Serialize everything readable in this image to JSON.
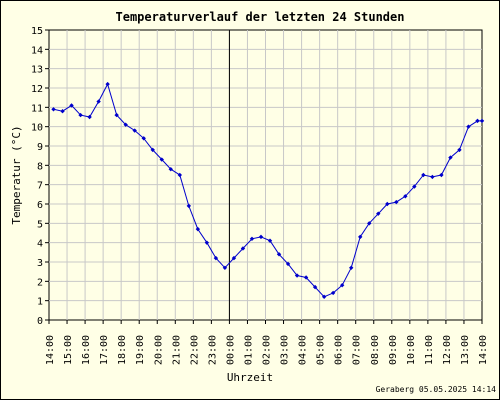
{
  "chart_data": {
    "type": "line",
    "title": "Temperaturverlauf der letzten 24 Stunden",
    "xlabel": "Uhrzeit",
    "ylabel": "Temperatur (°C)",
    "ylim": [
      0,
      15
    ],
    "yticks": [
      "0",
      "1",
      "2",
      "3",
      "4",
      "5",
      "6",
      "7",
      "8",
      "9",
      "10",
      "11",
      "12",
      "13",
      "14",
      "15"
    ],
    "xticks": [
      "14:00",
      "15:00",
      "16:00",
      "17:00",
      "18:00",
      "19:00",
      "20:00",
      "21:00",
      "22:00",
      "23:00",
      "00:00",
      "01:00",
      "02:00",
      "03:00",
      "04:00",
      "05:00",
      "06:00",
      "07:00",
      "08:00",
      "09:00",
      "10:00",
      "11:00",
      "12:00",
      "13:00",
      "14:00"
    ],
    "x_hours": [
      0.25,
      0.75,
      1.25,
      1.75,
      2.25,
      2.75,
      3.25,
      3.75,
      4.25,
      4.75,
      5.25,
      5.75,
      6.25,
      6.75,
      7.25,
      7.75,
      8.25,
      8.75,
      9.25,
      9.75,
      10.25,
      10.75,
      11.25,
      11.75,
      12.25,
      12.75,
      13.25,
      13.75,
      14.25,
      14.75,
      15.25,
      15.75,
      16.25,
      16.75,
      17.25,
      17.75,
      18.25,
      18.75,
      19.25,
      19.75,
      20.25,
      20.75,
      21.25,
      21.75,
      22.25,
      22.75,
      23.25,
      23.75,
      24.0
    ],
    "values": [
      10.9,
      10.8,
      11.1,
      10.6,
      10.5,
      11.3,
      12.2,
      10.6,
      10.1,
      9.8,
      9.4,
      8.8,
      8.3,
      7.8,
      7.5,
      5.9,
      4.7,
      4.0,
      3.2,
      2.7,
      3.2,
      3.7,
      4.2,
      4.3,
      4.1,
      3.4,
      2.9,
      2.3,
      2.2,
      1.7,
      1.2,
      1.4,
      1.8,
      2.7,
      4.3,
      5.0,
      5.5,
      6.0,
      6.1,
      6.4,
      6.9,
      7.5,
      7.4,
      7.5,
      8.4,
      8.8,
      10.0,
      10.3,
      10.3
    ],
    "midnight_marker_hour": 10,
    "grid": true,
    "legend": "none",
    "series_color": "#0000CC",
    "grid_color": "#C8C8C8",
    "background_color": "#FFFFE6",
    "credit": "Geraberg 05.05.2025 14:14"
  }
}
